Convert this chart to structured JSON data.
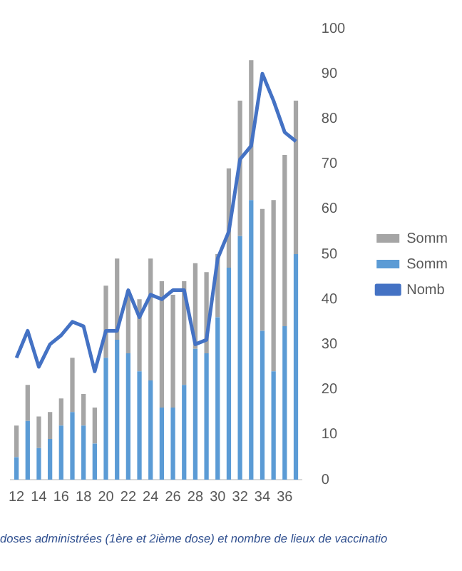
{
  "chart_data": {
    "type": "bar",
    "title": "doses administrées (1ère et 2ième dose) et nombre de lieux de vaccinatio",
    "categories": [
      "12",
      null,
      "14",
      null,
      "16",
      null,
      "18",
      null,
      "20",
      null,
      "22",
      null,
      "24",
      null,
      "26",
      null,
      "28",
      null,
      "30",
      null,
      "32",
      null,
      "34",
      null,
      "36",
      null
    ],
    "stacked": true,
    "legend": "right",
    "marker": "none",
    "ylim": [
      0,
      100
    ],
    "yticks": [
      0,
      10,
      20,
      30,
      40,
      50,
      60,
      70,
      80,
      90,
      100
    ],
    "series": [
      {
        "name": "Somm",
        "color": "#5b9bd5",
        "values": [
          5,
          13,
          7,
          9,
          12,
          15,
          12,
          8,
          27,
          31,
          28,
          24,
          22,
          16,
          16,
          21,
          29,
          28,
          36,
          47,
          54,
          62,
          33,
          24,
          34,
          50
        ]
      },
      {
        "name": "Somm",
        "color": "#a5a5a5",
        "values": [
          7,
          8,
          7,
          6,
          6,
          12,
          7,
          8,
          16,
          18,
          14,
          16,
          27,
          28,
          25,
          23,
          19,
          18,
          14,
          22,
          30,
          31,
          27,
          38,
          38,
          34
        ]
      },
      {
        "name": "Nomb",
        "type": "line",
        "color": "#4472c4",
        "values": [
          27,
          33,
          25,
          30,
          32,
          35,
          34,
          24,
          33,
          33,
          42,
          36,
          41,
          40,
          42,
          42,
          30,
          31,
          49,
          55,
          71,
          74,
          90,
          84,
          77,
          75
        ]
      }
    ]
  }
}
